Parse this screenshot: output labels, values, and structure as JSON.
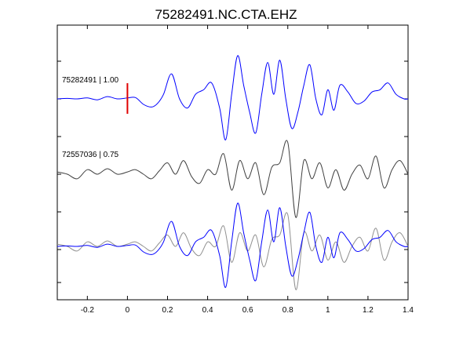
{
  "chart_data": {
    "type": "line",
    "title": "75282491.NC.CTA.EHZ",
    "xlabel": "",
    "ylabel": "",
    "xlim": [
      -0.35,
      1.4
    ],
    "xticks": [
      -0.2,
      0,
      0.2,
      0.4,
      0.6,
      0.8,
      1,
      1.2,
      1.4
    ],
    "xtick_labels": [
      "-0.2",
      "0",
      "0.2",
      "0.4",
      "0.6",
      "0.8",
      "1",
      "1.2",
      "1.4"
    ],
    "y_ticks_labeled": false,
    "grid": false,
    "pick": {
      "x": 0.0,
      "color": "#e00000",
      "trace": "top"
    },
    "traces": [
      {
        "label": "75282491 | 1.00",
        "color": "#0000ff",
        "x": [
          -0.35,
          -0.3,
          -0.25,
          -0.2,
          -0.15,
          -0.1,
          -0.05,
          0.0,
          0.04,
          0.08,
          0.12,
          0.15,
          0.18,
          0.22,
          0.26,
          0.3,
          0.34,
          0.38,
          0.42,
          0.46,
          0.49,
          0.52,
          0.55,
          0.58,
          0.61,
          0.64,
          0.67,
          0.7,
          0.73,
          0.76,
          0.79,
          0.82,
          0.85,
          0.88,
          0.91,
          0.94,
          0.97,
          1.0,
          1.03,
          1.06,
          1.1,
          1.14,
          1.18,
          1.22,
          1.26,
          1.3,
          1.34,
          1.38,
          1.4
        ],
        "y": [
          0.0,
          0.01,
          0.0,
          0.02,
          -0.02,
          0.05,
          0.0,
          0.02,
          0.03,
          -0.12,
          -0.18,
          -0.1,
          0.1,
          0.55,
          0.0,
          -0.2,
          0.1,
          0.2,
          0.35,
          -0.2,
          -0.9,
          0.1,
          0.95,
          0.3,
          -0.3,
          -0.75,
          0.1,
          0.8,
          0.1,
          0.85,
          0.0,
          -0.65,
          -0.3,
          0.3,
          0.75,
          0.0,
          -0.35,
          0.2,
          -0.25,
          0.3,
          0.15,
          -0.1,
          -0.05,
          0.15,
          0.2,
          0.35,
          0.1,
          0.0,
          0.0
        ]
      },
      {
        "label": "72557036 | 0.75",
        "color": "#404040",
        "x": [
          -0.35,
          -0.3,
          -0.25,
          -0.2,
          -0.15,
          -0.1,
          -0.05,
          0.0,
          0.04,
          0.08,
          0.12,
          0.16,
          0.2,
          0.24,
          0.28,
          0.32,
          0.36,
          0.4,
          0.44,
          0.48,
          0.52,
          0.56,
          0.6,
          0.64,
          0.68,
          0.72,
          0.76,
          0.8,
          0.84,
          0.88,
          0.92,
          0.96,
          1.0,
          1.04,
          1.08,
          1.12,
          1.16,
          1.2,
          1.24,
          1.28,
          1.32,
          1.36,
          1.4
        ],
        "y": [
          0.05,
          0.0,
          -0.1,
          0.1,
          0.0,
          0.12,
          0.0,
          0.05,
          0.1,
          0.0,
          -0.1,
          0.08,
          0.25,
          0.0,
          0.3,
          -0.05,
          -0.2,
          0.1,
          0.0,
          0.45,
          -0.35,
          0.3,
          -0.1,
          0.25,
          -0.45,
          0.15,
          0.25,
          0.7,
          -0.95,
          0.3,
          -0.1,
          0.25,
          -0.3,
          0.1,
          -0.35,
          0.0,
          0.2,
          -0.1,
          0.4,
          -0.3,
          0.1,
          0.3,
          0.0
        ]
      },
      {
        "label": "",
        "color": "#0000ff",
        "overlay_of": 0,
        "x": [
          -0.35,
          -0.3,
          -0.25,
          -0.2,
          -0.15,
          -0.1,
          -0.05,
          0.0,
          0.04,
          0.08,
          0.12,
          0.15,
          0.18,
          0.22,
          0.26,
          0.3,
          0.34,
          0.38,
          0.42,
          0.46,
          0.49,
          0.52,
          0.55,
          0.58,
          0.61,
          0.64,
          0.67,
          0.7,
          0.73,
          0.76,
          0.79,
          0.82,
          0.85,
          0.88,
          0.91,
          0.94,
          0.97,
          1.0,
          1.03,
          1.06,
          1.1,
          1.14,
          1.18,
          1.22,
          1.26,
          1.3,
          1.34,
          1.38,
          1.4
        ],
        "y": [
          0.0,
          0.01,
          0.0,
          0.02,
          -0.02,
          0.05,
          0.0,
          0.02,
          0.03,
          -0.12,
          -0.18,
          -0.1,
          0.1,
          0.55,
          0.0,
          -0.2,
          0.1,
          0.2,
          0.35,
          -0.2,
          -0.9,
          0.1,
          0.95,
          0.3,
          -0.3,
          -0.75,
          0.1,
          0.8,
          0.1,
          0.85,
          0.0,
          -0.65,
          -0.3,
          0.3,
          0.75,
          0.0,
          -0.35,
          0.2,
          -0.25,
          0.3,
          0.15,
          -0.1,
          -0.05,
          0.15,
          0.2,
          0.35,
          0.1,
          0.0,
          0.0
        ]
      },
      {
        "label": "",
        "color": "#909090",
        "overlay_of": 1,
        "x": [
          -0.35,
          -0.3,
          -0.25,
          -0.2,
          -0.15,
          -0.1,
          -0.05,
          0.0,
          0.04,
          0.08,
          0.12,
          0.16,
          0.2,
          0.24,
          0.28,
          0.32,
          0.36,
          0.4,
          0.44,
          0.48,
          0.52,
          0.56,
          0.6,
          0.64,
          0.68,
          0.72,
          0.76,
          0.8,
          0.84,
          0.88,
          0.92,
          0.96,
          1.0,
          1.04,
          1.08,
          1.12,
          1.16,
          1.2,
          1.24,
          1.28,
          1.32,
          1.36,
          1.4
        ],
        "y": [
          0.05,
          0.0,
          -0.1,
          0.1,
          0.0,
          0.12,
          0.0,
          0.05,
          0.1,
          0.0,
          -0.1,
          0.08,
          0.25,
          0.0,
          0.3,
          -0.05,
          -0.2,
          0.1,
          0.0,
          0.45,
          -0.35,
          0.3,
          -0.1,
          0.25,
          -0.45,
          0.15,
          0.25,
          0.7,
          -0.95,
          0.3,
          -0.1,
          0.25,
          -0.3,
          0.1,
          -0.35,
          0.0,
          0.2,
          -0.1,
          0.4,
          -0.3,
          0.1,
          0.3,
          0.0
        ]
      }
    ]
  }
}
